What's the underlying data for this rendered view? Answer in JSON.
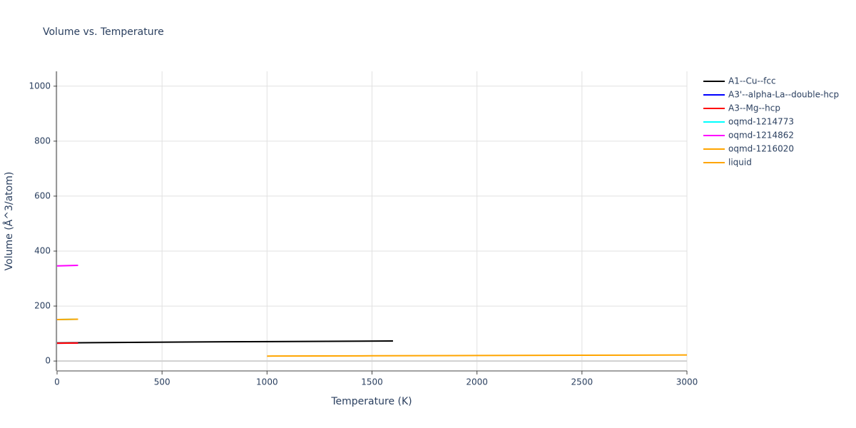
{
  "chart_data": {
    "type": "line",
    "title": "Volume vs. Temperature",
    "x_label": "Temperature (K)",
    "y_label": "Volume (Å^3/atom)",
    "xlim": [
      0,
      3000
    ],
    "xticks": [
      0,
      500,
      1000,
      1500,
      2000,
      2500,
      3000
    ],
    "ylim": [
      -36,
      1054
    ],
    "yticks": [
      0,
      200,
      400,
      600,
      800,
      1000
    ],
    "grid": true,
    "legend": "right",
    "series": [
      {
        "name": "A1--Cu--fcc",
        "color": "#000000",
        "x": [
          0,
          400,
          800,
          1200,
          1600
        ],
        "values": [
          66,
          68,
          70,
          71.5,
          73
        ]
      },
      {
        "name": "A3'--alpha-La--double-hcp",
        "color": "#0000ff",
        "x": [
          0,
          50,
          100
        ],
        "values": [
          65,
          65.3,
          65.6
        ]
      },
      {
        "name": "A3--Mg--hcp",
        "color": "#ff0000",
        "x": [
          0,
          50,
          100
        ],
        "values": [
          65,
          65.3,
          65.6
        ]
      },
      {
        "name": "oqmd-1214773",
        "color": "#00ffff",
        "x": [
          0,
          50,
          100
        ],
        "values": [
          151,
          151.5,
          152
        ]
      },
      {
        "name": "oqmd-1214862",
        "color": "#ff00ff",
        "x": [
          0,
          50,
          100
        ],
        "values": [
          346,
          347,
          348
        ]
      },
      {
        "name": "oqmd-1216020",
        "color": "#ffa500",
        "x": [
          0,
          50,
          100
        ],
        "values": [
          151,
          151.5,
          152
        ]
      },
      {
        "name": "liquid",
        "color": "#ffa500",
        "x": [
          1000,
          1500,
          2000,
          2500,
          3000
        ],
        "values": [
          18,
          19,
          20,
          21,
          22
        ]
      }
    ]
  }
}
